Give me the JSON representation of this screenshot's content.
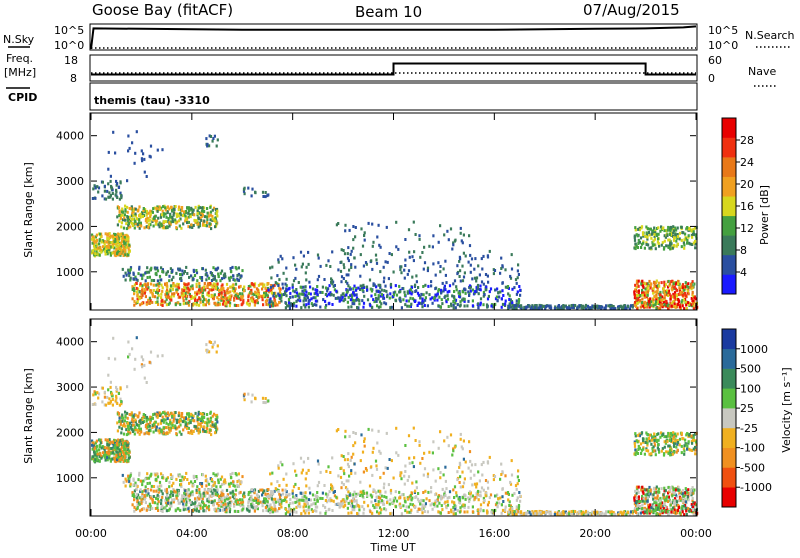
{
  "header": {
    "station": "Goose Bay (fitACF)",
    "beam": "Beam 10",
    "date": "07/Aug/2015"
  },
  "params": {
    "nsky_label": "N.Sky",
    "nsearch_label": "N.Search",
    "freq_label_1": "Freq.",
    "freq_label_2": "[MHz]",
    "nave_label": "Nave",
    "cpid_label": "CPID",
    "cpid_text": "themis (tau) -3310",
    "left_ticks_top": [
      "10^5",
      "10^0"
    ],
    "right_ticks_top": [
      "10^5",
      "10^0"
    ],
    "left_ticks_freq": [
      "18",
      "8"
    ],
    "right_ticks_nave": [
      "60",
      "0"
    ]
  },
  "xaxis": {
    "label": "Time UT",
    "ticks": [
      "00:00",
      "04:00",
      "08:00",
      "12:00",
      "16:00",
      "20:00",
      "00:00"
    ]
  },
  "power_colorbar": {
    "label": "Power [dB]",
    "ticks": [
      "4",
      "8",
      "12",
      "16",
      "20",
      "24",
      "28"
    ]
  },
  "velocity_colorbar": {
    "label": "Velocity [m s⁻¹]",
    "ticks": [
      "1000",
      "500",
      "100",
      "25",
      "-25",
      "-100",
      "-500",
      "-1000"
    ]
  },
  "colors": {
    "power": [
      "#1a1aff",
      "#2a4fa0",
      "#3a7a5a",
      "#44a040",
      "#d7d71e",
      "#f0a020",
      "#e87818",
      "#f03010",
      "#e80000"
    ],
    "velocity": [
      "#1a3aa0",
      "#2a6a9a",
      "#3a8a5a",
      "#5ac040",
      "#c8c8c0",
      "#f0b020",
      "#f09020",
      "#f05010",
      "#e80000"
    ]
  },
  "chart_data": [
    {
      "type": "line",
      "title": "",
      "series": [
        {
          "name": "N.Sky",
          "x_hours": [
            0,
            0.1,
            2,
            4,
            6,
            8,
            10,
            12,
            14,
            16,
            18,
            20,
            22,
            23.5,
            24
          ],
          "values_log10": [
            0,
            4.3,
            4.2,
            4.1,
            4.0,
            4.0,
            4.0,
            4.0,
            4.0,
            4.0,
            4.1,
            4.2,
            4.3,
            4.5,
            4.7
          ]
        }
      ],
      "ylim_log10": [
        0,
        5
      ]
    },
    {
      "type": "line",
      "title": "",
      "series": [
        {
          "name": "Freq.",
          "x_hours": [
            0,
            12,
            12,
            22,
            22,
            24
          ],
          "values": [
            10.5,
            10.5,
            15.5,
            15.5,
            10.5,
            10.5
          ]
        }
      ],
      "ylim": [
        8,
        18
      ]
    },
    {
      "type": "heatmap",
      "title": "",
      "ylabel": "Slant Range [km]",
      "xlabel": "",
      "ylim": [
        180,
        4500
      ],
      "yticks": [
        1000,
        2000,
        3000,
        4000
      ],
      "xlim_hours": [
        0,
        24
      ],
      "colorbar": "Power [dB]"
    },
    {
      "type": "heatmap",
      "title": "",
      "ylabel": "Slant Range [km]",
      "xlabel": "Time UT",
      "ylim": [
        180,
        4500
      ],
      "yticks": [
        1000,
        2000,
        3000,
        4000
      ],
      "xlim_hours": [
        0,
        24
      ],
      "colorbar": "Velocity [m s⁻¹]"
    }
  ]
}
